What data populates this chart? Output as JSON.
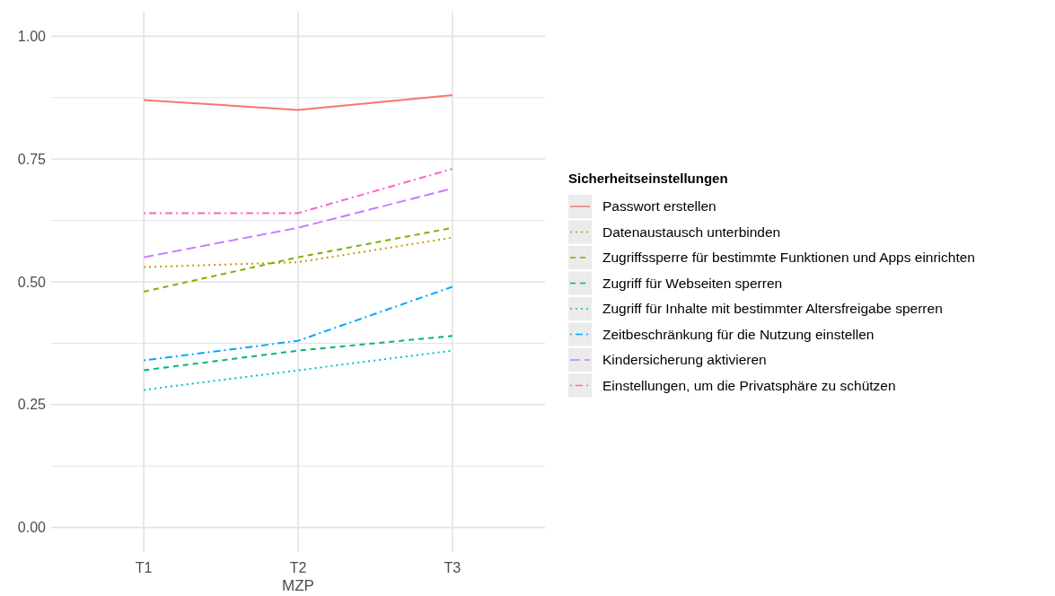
{
  "chart_data": {
    "type": "line",
    "xlabel": "MZP",
    "legend_title": "Sicherheitseinstellungen",
    "categories": [
      "T1",
      "T2",
      "T3"
    ],
    "ylim": [
      -0.05,
      1.05
    ],
    "yticks": [
      {
        "value": 0,
        "label": "0.00"
      },
      {
        "value": 0.125,
        "label": null
      },
      {
        "value": 0.25,
        "label": "0.25"
      },
      {
        "value": 0.375,
        "label": null
      },
      {
        "value": 0.5,
        "label": "0.50"
      },
      {
        "value": 0.625,
        "label": null
      },
      {
        "value": 0.75,
        "label": "0.75"
      },
      {
        "value": 0.875,
        "label": null
      },
      {
        "value": 1,
        "label": "1.00"
      }
    ],
    "grid": true,
    "legend": "right",
    "marker": "none",
    "series": [
      {
        "name": "Passwort erstellen",
        "color": "#f8766d",
        "line_style": "solid",
        "values": [
          0.87,
          0.85,
          0.88
        ]
      },
      {
        "name": "Datenaustausch unterbinden",
        "color": "#c49a00",
        "line_style": "dotted",
        "values": [
          0.53,
          0.54,
          0.59
        ]
      },
      {
        "name": "Zugriffssperre für bestimmte Funktionen und Apps einrichten",
        "color": "#7cae00",
        "line_style": "dashed",
        "values": [
          0.48,
          0.55,
          0.61
        ]
      },
      {
        "name": "Zugriff für Webseiten sperren",
        "color": "#00b86b",
        "line_style": "dashed",
        "values": [
          0.32,
          0.36,
          0.39
        ]
      },
      {
        "name": "Zugriff für Inhalte mit bestimmter Altersfreigabe sperren",
        "color": "#00bfc4",
        "line_style": "dotted",
        "values": [
          0.28,
          0.32,
          0.36
        ]
      },
      {
        "name": "Zeitbeschränkung für die Nutzung einstellen",
        "color": "#00a9ff",
        "line_style": "dashdot",
        "values": [
          0.34,
          0.38,
          0.49
        ]
      },
      {
        "name": "Kindersicherung aktivieren",
        "color": "#c77cff",
        "line_style": "longdash",
        "values": [
          0.55,
          0.61,
          0.69
        ]
      },
      {
        "name": "Einstellungen, um die Privatsphäre zu schützen",
        "color": "#ff61cc",
        "line_style": "dashdot",
        "values": [
          0.64,
          0.64,
          0.73
        ]
      }
    ]
  }
}
